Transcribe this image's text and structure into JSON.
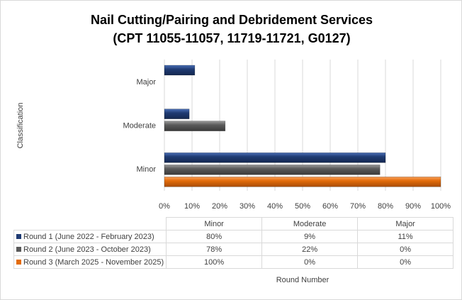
{
  "chart_data": {
    "type": "bar",
    "orientation": "horizontal",
    "title": [
      "Nail Cutting/Pairing and Debridement Services",
      "(CPT 11055-11057, 11719-11721, G0127)"
    ],
    "ylabel": "Classification",
    "xlabel": "Round Number",
    "categories": [
      "Minor",
      "Moderate",
      "Major"
    ],
    "xlim": [
      0,
      100
    ],
    "xticks": [
      "0%",
      "10%",
      "20%",
      "30%",
      "40%",
      "50%",
      "60%",
      "70%",
      "80%",
      "90%",
      "100%"
    ],
    "grid": true,
    "legend": "data-table",
    "series": [
      {
        "name": "Round 1 (June 2022 - February 2023)",
        "values": [
          80,
          9,
          11
        ],
        "labels": [
          "80%",
          "9%",
          "11%"
        ],
        "color": "#1f3b73"
      },
      {
        "name": "Round 2 (June 2023 - October 2023)",
        "values": [
          78,
          22,
          0
        ],
        "labels": [
          "78%",
          "22%",
          "0%"
        ],
        "color": "#5a5a5a"
      },
      {
        "name": "Round 3 (March 2025 - November 2025)",
        "values": [
          100,
          0,
          0
        ],
        "labels": [
          "100%",
          "0%",
          "0%"
        ],
        "color": "#e36c0a"
      }
    ]
  }
}
